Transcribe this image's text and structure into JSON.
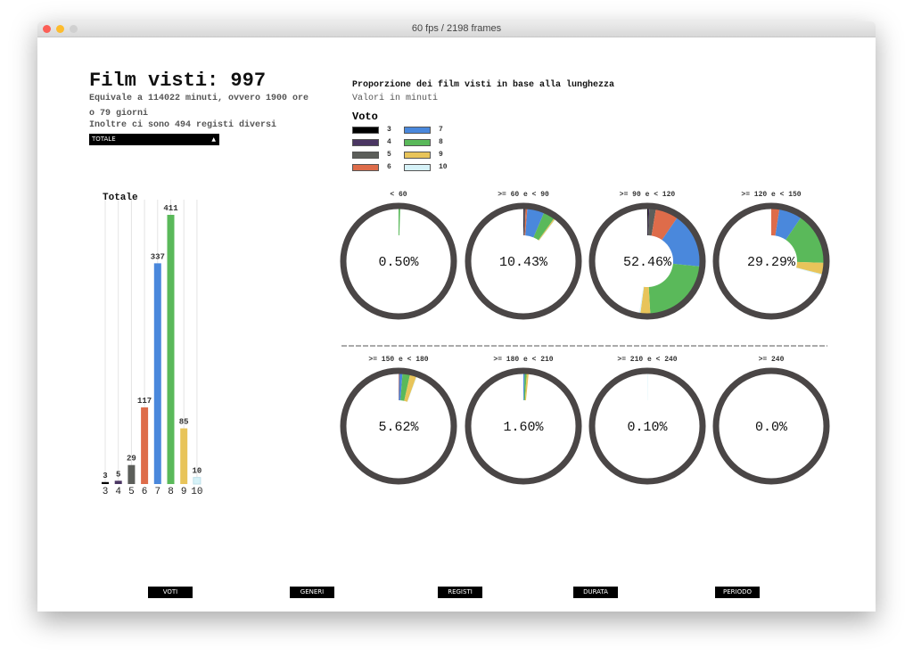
{
  "window": {
    "title": "60 fps / 2198 frames"
  },
  "header": {
    "title": "Film visti: 997",
    "line1": "Equivale a 114022 minuti, ovvero 1900 ore",
    "line2": "o 79 giorni",
    "line3": "Inoltre ci sono 494 registi diversi",
    "select_value": "TOTALE",
    "select_arrow": "▲"
  },
  "right_header": {
    "title": "Proporzione dei film visti in base alla lunghezza",
    "subtitle": "Valori in minuti"
  },
  "legend": {
    "title": "Voto",
    "items": [
      {
        "label": "3",
        "color": "#000000"
      },
      {
        "label": "4",
        "color": "#4b3663"
      },
      {
        "label": "5",
        "color": "#5c5e5a"
      },
      {
        "label": "6",
        "color": "#de6c4a"
      },
      {
        "label": "7",
        "color": "#4a88dc"
      },
      {
        "label": "8",
        "color": "#5ab95a"
      },
      {
        "label": "9",
        "color": "#e8c45a"
      },
      {
        "label": "10",
        "color": "#d6f2f8"
      }
    ]
  },
  "chart_data": [
    {
      "type": "bar",
      "title": "Totale",
      "categories": [
        "3",
        "4",
        "5",
        "6",
        "7",
        "8",
        "9",
        "10"
      ],
      "values": [
        3,
        5,
        29,
        117,
        337,
        411,
        85,
        10
      ],
      "colors": [
        "#000000",
        "#4b3663",
        "#5c5e5a",
        "#de6c4a",
        "#4a88dc",
        "#5ab95a",
        "#e8c45a",
        "#d6f2f8"
      ],
      "grid": "vertical"
    },
    {
      "type": "pie",
      "subtype": "donut-per-bin",
      "categories_votes": [
        "3",
        "4",
        "5",
        "6",
        "7",
        "8",
        "9",
        "10"
      ],
      "bins": [
        {
          "label": "< 60",
          "total_label": "0.50%",
          "values": [
            0,
            0,
            0,
            0,
            0,
            0.5,
            0,
            0
          ]
        },
        {
          "label": ">= 60 e < 90",
          "total_label": "10.43%",
          "values": [
            0.2,
            0.2,
            0.3,
            0.5,
            5.2,
            3.5,
            0.4,
            0.13
          ]
        },
        {
          "label": ">= 90 e < 120",
          "total_label": "52.46%",
          "values": [
            0.3,
            0.3,
            2,
            7,
            17,
            22.5,
            3,
            0.36
          ]
        },
        {
          "label": ">= 120 e < 150",
          "total_label": "29.29%",
          "values": [
            0,
            0,
            0,
            2.5,
            7,
            16,
            3.5,
            0.29
          ]
        },
        {
          "label": ">= 150 e < 180",
          "total_label": "5.62%",
          "values": [
            0,
            0,
            0,
            0.2,
            1,
            2.3,
            2,
            0.12
          ]
        },
        {
          "label": ">= 180 e < 210",
          "total_label": "1.60%",
          "values": [
            0,
            0,
            0,
            0,
            0.4,
            0.6,
            0.6,
            0
          ]
        },
        {
          "label": ">= 210 e < 240",
          "total_label": "0.10%",
          "values": [
            0,
            0,
            0,
            0,
            0,
            0,
            0,
            0.1
          ]
        },
        {
          "label": ">= 240",
          "total_label": "0.0%",
          "values": [
            0,
            0,
            0,
            0,
            0,
            0,
            0,
            0
          ]
        }
      ]
    }
  ],
  "nav": [
    "VOTI",
    "GENERI",
    "REGISTI",
    "DURATA",
    "PERIODO"
  ]
}
